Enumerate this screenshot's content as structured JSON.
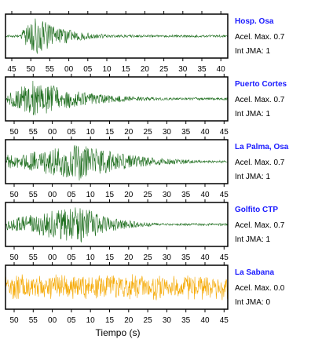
{
  "chart_data": [
    {
      "type": "line",
      "station": "Hosp. Osa",
      "color": "#1e6e1e",
      "tick_labels": [
        "45",
        "50",
        "55",
        "00",
        "05",
        "10",
        "15",
        "20",
        "25",
        "30",
        "35",
        "40"
      ],
      "acel_label": "Acel. Max. 0.7",
      "jma_label": "Int JMA: 1",
      "series": [
        {
          "x_peak": 52,
          "onset": 44,
          "amplitude": 0.95,
          "decay": 9
        }
      ]
    },
    {
      "type": "line",
      "station": "Puerto Cortes",
      "color": "#1e6e1e",
      "tick_labels": [
        "50",
        "55",
        "00",
        "05",
        "10",
        "15",
        "20",
        "25",
        "30",
        "35",
        "40",
        "45"
      ],
      "acel_label": "Acel. Max. 0.7",
      "jma_label": "Int JMA: 1",
      "series": [
        {
          "x_peak": 55,
          "onset": 47,
          "amplitude": 0.95,
          "decay": 14
        }
      ]
    },
    {
      "type": "line",
      "station": "La Palma, Osa",
      "color": "#1e6e1e",
      "tick_labels": [
        "50",
        "55",
        "00",
        "05",
        "10",
        "15",
        "20",
        "25",
        "30",
        "35",
        "40",
        "45"
      ],
      "acel_label": "Acel. Max. 0.7",
      "jma_label": "Int JMA: 1",
      "series": [
        {
          "x_peak": 66,
          "onset": 47,
          "amplitude": 0.95,
          "decay": 14
        }
      ]
    },
    {
      "type": "line",
      "station": "Golfito CTP",
      "color": "#1e6e1e",
      "tick_labels": [
        "50",
        "55",
        "00",
        "05",
        "10",
        "15",
        "20",
        "25",
        "30",
        "35",
        "40",
        "45"
      ],
      "acel_label": "Acel. Max. 0.7",
      "jma_label": "Int JMA: 1",
      "series": [
        {
          "x_peak": 66,
          "onset": 47,
          "amplitude": 0.95,
          "decay": 9
        }
      ]
    },
    {
      "type": "line",
      "station": "La Sabana",
      "color": "#f5a800",
      "tick_labels": [
        "50",
        "55",
        "00",
        "05",
        "10",
        "15",
        "20",
        "25",
        "30",
        "35",
        "40",
        "45"
      ],
      "acel_label": "Acel. Max. 0.0",
      "jma_label": "Int JMA: 0",
      "series": [
        {
          "x_peak": 66,
          "onset": 47,
          "amplitude": 0.8,
          "decay": 0
        }
      ]
    }
  ],
  "xlabel": "Tiempo (s)"
}
